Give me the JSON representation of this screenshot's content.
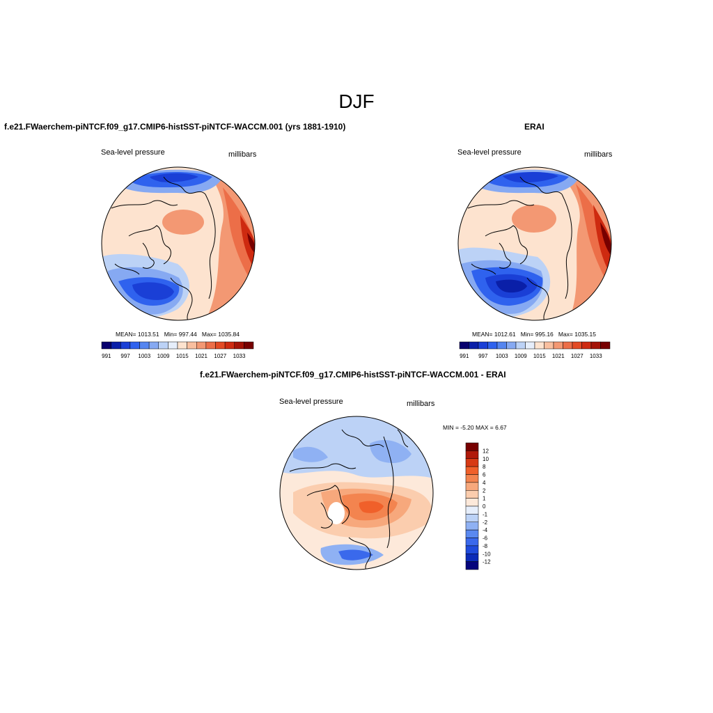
{
  "figure": {
    "title": "DJF"
  },
  "panels": {
    "model": {
      "title": "f.e21.FWaerchem-piNTCF.f09_g17.CMIP6-histSST-piNTCF-WACCM.001 (yrs 1881-1910)",
      "left_label": "Sea-level pressure",
      "right_label": "millibars",
      "stats": {
        "mean_label": "MEAN=",
        "mean": "1013.51",
        "min_label": "Min=",
        "min": "997.44",
        "max_label": "Max=",
        "max": "1035.84"
      }
    },
    "obs": {
      "title": "ERAI",
      "left_label": "Sea-level pressure",
      "right_label": "millibars",
      "stats": {
        "mean_label": "MEAN=",
        "mean": "1012.61",
        "min_label": "Min=",
        "min": "995.16",
        "max_label": "Max=",
        "max": "1035.15"
      }
    },
    "diff": {
      "title": "f.e21.FWaerchem-piNTCF.f09_g17.CMIP6-histSST-piNTCF-WACCM.001 - ERAI",
      "left_label": "Sea-level pressure",
      "right_label": "millibars",
      "minmax": "MIN =  -5.20 MAX =   6.67"
    }
  },
  "colorbar_abs": {
    "colors": [
      "#08006e",
      "#0a1fa8",
      "#1a3fd6",
      "#2f62ee",
      "#5585f0",
      "#86a9f2",
      "#bcd2f6",
      "#e6eefb",
      "#fde3cf",
      "#f9bf9f",
      "#f39873",
      "#ec6e48",
      "#e34a24",
      "#ce2a10",
      "#a41206",
      "#770000"
    ],
    "tick_labels": [
      "991",
      "997",
      "1003",
      "1009",
      "1015",
      "1021",
      "1027",
      "1033"
    ]
  },
  "colorbar_diff": {
    "colors": [
      "#770000",
      "#b01a0a",
      "#d73a14",
      "#f0602a",
      "#f3844f",
      "#f7a87c",
      "#fbcdae",
      "#fde9da",
      "#e6eefb",
      "#bcd2f6",
      "#8fb1f3",
      "#5a89f0",
      "#3a69ec",
      "#1f4bdc",
      "#0b2bb8",
      "#05047c"
    ],
    "tick_labels": [
      "12",
      "10",
      "8",
      "6",
      "4",
      "2",
      "1",
      "0",
      "-1",
      "-2",
      "-4",
      "-6",
      "-8",
      "-10",
      "-12"
    ]
  }
}
